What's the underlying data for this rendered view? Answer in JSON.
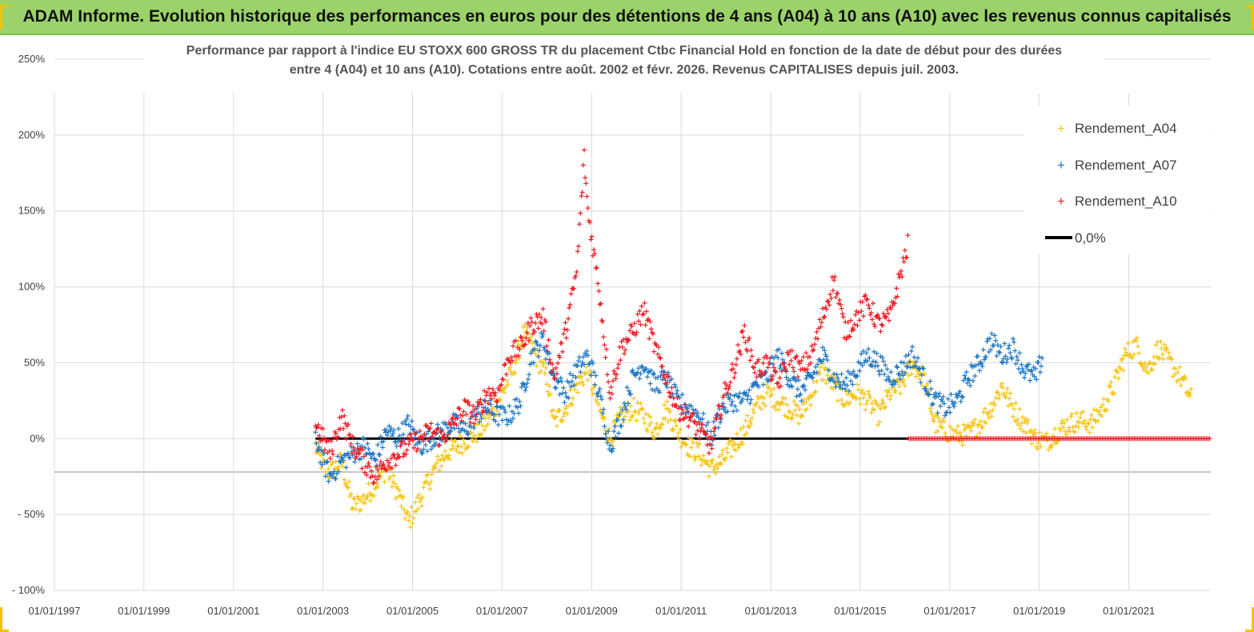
{
  "header": {
    "title": "ADAM Informe. Evolution historique des performances en euros pour des détentions de 4 ans (A04) à 10 ans (A10) avec les revenus connus capitalisés"
  },
  "colors": {
    "header_bg": "#9bd36a",
    "corner_accent": "#f2c200",
    "A04": "#f5c518",
    "A07": "#1f77c4",
    "A10": "#ee1c25",
    "zero_line": "#000000",
    "grid": "#d9d9d9"
  },
  "chart_data": {
    "type": "scatter",
    "title_lines": [
      "Performance par rapport à l'indice EU STOXX 600 GROSS TR  du placement Ctbc Financial Hold  en fonction de la date de début pour des durées",
      "entre 4 (A04) et 10 ans (A10). Cotations entre août. 2002 et févr. 2026. Revenus CAPITALISES depuis juil. 2003."
    ],
    "xlim": [
      "1997-01-01",
      "2022-10-31"
    ],
    "x_ticks": [
      "01/01/1997",
      "01/01/1999",
      "01/01/2001",
      "01/01/2003",
      "01/01/2005",
      "01/01/2007",
      "01/01/2009",
      "01/01/2011",
      "01/01/2013",
      "01/01/2015",
      "01/01/2017",
      "01/01/2019",
      "01/01/2021"
    ],
    "ylim": [
      -100,
      250
    ],
    "y_ticks": [
      {
        "value": 250,
        "label": "250%"
      },
      {
        "value": 200,
        "label": "200%"
      },
      {
        "value": 150,
        "label": "150%"
      },
      {
        "value": 100,
        "label": "100%"
      },
      {
        "value": 50,
        "label": "50%"
      },
      {
        "value": 0,
        "label": "0%"
      },
      {
        "value": -50,
        "label": "- 50%"
      },
      {
        "value": -100,
        "label": "- 100%"
      }
    ],
    "grid": true,
    "legend_position": "top-right",
    "series": [
      {
        "name": "Rendement_A04",
        "marker": "+",
        "color": "#f5c518",
        "points": [
          [
            "2002-11-01",
            -5
          ],
          [
            "2003-01-01",
            -18
          ],
          [
            "2003-03-01",
            -22
          ],
          [
            "2003-06-01",
            -15
          ],
          [
            "2003-09-01",
            -45
          ],
          [
            "2003-12-01",
            -40
          ],
          [
            "2004-03-01",
            -30
          ],
          [
            "2004-06-01",
            -20
          ],
          [
            "2004-09-01",
            -35
          ],
          [
            "2004-12-01",
            -55
          ],
          [
            "2005-02-01",
            -45
          ],
          [
            "2005-04-01",
            -35
          ],
          [
            "2005-07-01",
            -20
          ],
          [
            "2005-10-01",
            -10
          ],
          [
            "2006-01-01",
            -5
          ],
          [
            "2006-04-01",
            0
          ],
          [
            "2006-07-01",
            5
          ],
          [
            "2006-10-01",
            15
          ],
          [
            "2007-01-01",
            30
          ],
          [
            "2007-04-01",
            45
          ],
          [
            "2007-07-01",
            70
          ],
          [
            "2007-10-01",
            55
          ],
          [
            "2008-01-01",
            40
          ],
          [
            "2008-03-01",
            10
          ],
          [
            "2008-06-01",
            20
          ],
          [
            "2008-09-01",
            35
          ],
          [
            "2008-12-01",
            45
          ],
          [
            "2009-03-01",
            20
          ],
          [
            "2009-06-01",
            0
          ],
          [
            "2009-09-01",
            15
          ],
          [
            "2009-12-01",
            20
          ],
          [
            "2010-03-01",
            15
          ],
          [
            "2010-06-01",
            5
          ],
          [
            "2010-09-01",
            20
          ],
          [
            "2010-12-01",
            5
          ],
          [
            "2011-03-01",
            -5
          ],
          [
            "2011-06-01",
            -10
          ],
          [
            "2011-09-01",
            -20
          ],
          [
            "2011-12-01",
            -15
          ],
          [
            "2012-03-01",
            -5
          ],
          [
            "2012-06-01",
            5
          ],
          [
            "2012-09-01",
            20
          ],
          [
            "2012-12-01",
            30
          ],
          [
            "2013-03-01",
            25
          ],
          [
            "2013-06-01",
            20
          ],
          [
            "2013-09-01",
            15
          ],
          [
            "2013-12-01",
            30
          ],
          [
            "2014-03-01",
            45
          ],
          [
            "2014-06-01",
            35
          ],
          [
            "2014-09-01",
            25
          ],
          [
            "2014-12-01",
            30
          ],
          [
            "2015-03-01",
            25
          ],
          [
            "2015-06-01",
            15
          ],
          [
            "2015-09-01",
            30
          ],
          [
            "2015-12-01",
            35
          ],
          [
            "2016-03-01",
            50
          ],
          [
            "2016-06-01",
            40
          ],
          [
            "2016-09-01",
            10
          ],
          [
            "2016-12-01",
            5
          ],
          [
            "2017-03-01",
            2
          ],
          [
            "2017-06-01",
            3
          ],
          [
            "2017-09-01",
            10
          ],
          [
            "2017-12-01",
            20
          ],
          [
            "2018-03-01",
            35
          ],
          [
            "2018-06-01",
            20
          ],
          [
            "2018-09-01",
            10
          ],
          [
            "2018-12-01",
            0
          ],
          [
            "2019-03-01",
            -2
          ],
          [
            "2019-06-01",
            5
          ],
          [
            "2019-09-01",
            10
          ],
          [
            "2019-12-01",
            12
          ],
          [
            "2020-03-01",
            10
          ],
          [
            "2020-06-01",
            20
          ],
          [
            "2020-09-01",
            35
          ],
          [
            "2020-12-01",
            55
          ],
          [
            "2021-03-01",
            62
          ],
          [
            "2021-06-01",
            45
          ],
          [
            "2021-09-01",
            60
          ],
          [
            "2021-12-01",
            50
          ],
          [
            "2022-03-01",
            40
          ],
          [
            "2022-06-01",
            25
          ]
        ]
      },
      {
        "name": "Rendement_A07",
        "marker": "+",
        "color": "#1f77c4",
        "points": [
          [
            "2002-11-01",
            0
          ],
          [
            "2003-01-01",
            -15
          ],
          [
            "2003-03-01",
            -25
          ],
          [
            "2003-06-01",
            -15
          ],
          [
            "2003-09-01",
            -10
          ],
          [
            "2003-12-01",
            -5
          ],
          [
            "2004-03-01",
            -15
          ],
          [
            "2004-06-01",
            5
          ],
          [
            "2004-09-01",
            0
          ],
          [
            "2004-12-01",
            10
          ],
          [
            "2005-03-01",
            -5
          ],
          [
            "2005-06-01",
            0
          ],
          [
            "2005-09-01",
            5
          ],
          [
            "2005-12-01",
            10
          ],
          [
            "2006-03-01",
            5
          ],
          [
            "2006-06-01",
            15
          ],
          [
            "2006-09-01",
            20
          ],
          [
            "2006-12-01",
            15
          ],
          [
            "2007-03-01",
            15
          ],
          [
            "2007-06-01",
            25
          ],
          [
            "2007-09-01",
            55
          ],
          [
            "2007-12-01",
            65
          ],
          [
            "2008-03-01",
            40
          ],
          [
            "2008-06-01",
            30
          ],
          [
            "2008-09-01",
            45
          ],
          [
            "2008-12-01",
            55
          ],
          [
            "2009-03-01",
            30
          ],
          [
            "2009-06-01",
            -5
          ],
          [
            "2009-09-01",
            15
          ],
          [
            "2009-12-01",
            40
          ],
          [
            "2010-03-01",
            50
          ],
          [
            "2010-06-01",
            35
          ],
          [
            "2010-09-01",
            40
          ],
          [
            "2010-12-01",
            25
          ],
          [
            "2011-03-01",
            20
          ],
          [
            "2011-06-01",
            15
          ],
          [
            "2011-09-01",
            0
          ],
          [
            "2011-12-01",
            20
          ],
          [
            "2012-03-01",
            25
          ],
          [
            "2012-06-01",
            25
          ],
          [
            "2012-09-01",
            35
          ],
          [
            "2012-12-01",
            40
          ],
          [
            "2013-03-01",
            55
          ],
          [
            "2013-06-01",
            40
          ],
          [
            "2013-09-01",
            30
          ],
          [
            "2013-12-01",
            40
          ],
          [
            "2014-03-01",
            55
          ],
          [
            "2014-06-01",
            40
          ],
          [
            "2014-09-01",
            35
          ],
          [
            "2014-12-01",
            45
          ],
          [
            "2015-03-01",
            55
          ],
          [
            "2015-06-01",
            50
          ],
          [
            "2015-09-01",
            40
          ],
          [
            "2015-12-01",
            45
          ],
          [
            "2016-03-01",
            55
          ],
          [
            "2016-06-01",
            40
          ],
          [
            "2016-09-01",
            25
          ],
          [
            "2016-12-01",
            20
          ],
          [
            "2017-03-01",
            25
          ],
          [
            "2017-06-01",
            40
          ],
          [
            "2017-09-01",
            50
          ],
          [
            "2017-12-01",
            65
          ],
          [
            "2018-03-01",
            55
          ],
          [
            "2018-06-01",
            60
          ],
          [
            "2018-09-01",
            45
          ],
          [
            "2018-12-01",
            40
          ],
          [
            "2019-02-01",
            55
          ]
        ]
      },
      {
        "name": "Rendement_A10",
        "marker": "+",
        "color": "#ee1c25",
        "points": [
          [
            "2002-11-01",
            10
          ],
          [
            "2003-01-01",
            0
          ],
          [
            "2003-03-01",
            -10
          ],
          [
            "2003-06-01",
            15
          ],
          [
            "2003-09-01",
            -5
          ],
          [
            "2003-12-01",
            -15
          ],
          [
            "2004-03-01",
            -25
          ],
          [
            "2004-06-01",
            -15
          ],
          [
            "2004-09-01",
            -10
          ],
          [
            "2004-12-01",
            -5
          ],
          [
            "2005-03-01",
            0
          ],
          [
            "2005-06-01",
            5
          ],
          [
            "2005-09-01",
            0
          ],
          [
            "2005-12-01",
            10
          ],
          [
            "2006-03-01",
            20
          ],
          [
            "2006-06-01",
            15
          ],
          [
            "2006-09-01",
            30
          ],
          [
            "2006-12-01",
            30
          ],
          [
            "2007-03-01",
            55
          ],
          [
            "2007-06-01",
            60
          ],
          [
            "2007-09-01",
            75
          ],
          [
            "2007-12-01",
            80
          ],
          [
            "2008-03-01",
            40
          ],
          [
            "2008-06-01",
            70
          ],
          [
            "2008-09-01",
            110
          ],
          [
            "2008-11-01",
            185
          ],
          [
            "2008-12-01",
            150
          ],
          [
            "2009-03-01",
            100
          ],
          [
            "2009-06-01",
            30
          ],
          [
            "2009-09-01",
            60
          ],
          [
            "2009-12-01",
            70
          ],
          [
            "2010-03-01",
            85
          ],
          [
            "2010-06-01",
            60
          ],
          [
            "2010-09-01",
            40
          ],
          [
            "2010-12-01",
            20
          ],
          [
            "2011-03-01",
            15
          ],
          [
            "2011-06-01",
            5
          ],
          [
            "2011-09-01",
            -5
          ],
          [
            "2011-12-01",
            25
          ],
          [
            "2012-03-01",
            45
          ],
          [
            "2012-06-01",
            70
          ],
          [
            "2012-09-01",
            45
          ],
          [
            "2012-12-01",
            50
          ],
          [
            "2013-03-01",
            35
          ],
          [
            "2013-06-01",
            55
          ],
          [
            "2013-09-01",
            45
          ],
          [
            "2013-12-01",
            55
          ],
          [
            "2014-03-01",
            80
          ],
          [
            "2014-06-01",
            105
          ],
          [
            "2014-09-01",
            70
          ],
          [
            "2014-12-01",
            80
          ],
          [
            "2015-03-01",
            90
          ],
          [
            "2015-06-01",
            75
          ],
          [
            "2015-09-01",
            80
          ],
          [
            "2015-12-01",
            110
          ],
          [
            "2016-02-01",
            130
          ]
        ]
      },
      {
        "name": "0,0%",
        "marker": "line",
        "color": "#000000",
        "points": [
          [
            "2002-11-01",
            0
          ],
          [
            "2016-02-01",
            0
          ]
        ]
      }
    ],
    "flat_tail": {
      "series": "Rendement_A10",
      "x_from": "2016-02-01",
      "x_to": "2022-10-31",
      "y": 0
    }
  }
}
